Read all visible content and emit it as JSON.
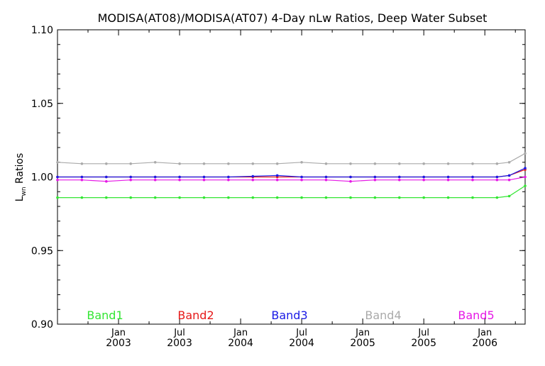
{
  "chart_data": {
    "type": "line",
    "title": "MODISA(AT08)/MODISA(AT07) 4-Day nLw Ratios, Deep Water Subset",
    "ylabel_main": "L",
    "ylabel_sub": "wn",
    "ylabel_rest": " Ratios",
    "ylim": [
      0.9,
      1.1
    ],
    "yticks": [
      {
        "value": 0.9,
        "label": "0.90"
      },
      {
        "value": 0.95,
        "label": "0.95"
      },
      {
        "value": 1.0,
        "label": "1.00"
      },
      {
        "value": 1.05,
        "label": "1.05"
      },
      {
        "value": 1.1,
        "label": "1.10"
      }
    ],
    "xlim": [
      2002.5,
      2006.33
    ],
    "xticks": [
      {
        "value": 2003.0,
        "line1": "Jan",
        "line2": "2003"
      },
      {
        "value": 2003.5,
        "line1": "Jul",
        "line2": "2003"
      },
      {
        "value": 2004.0,
        "line1": "Jan",
        "line2": "2004"
      },
      {
        "value": 2004.5,
        "line1": "Jul",
        "line2": "2004"
      },
      {
        "value": 2005.0,
        "line1": "Jan",
        "line2": "2005"
      },
      {
        "value": 2005.5,
        "line1": "Jul",
        "line2": "2005"
      },
      {
        "value": 2006.0,
        "line1": "Jan",
        "line2": "2006"
      }
    ],
    "grid": false,
    "legend_placement": "bottom",
    "series": [
      {
        "name": "Band1",
        "color": "#33e633",
        "points": [
          [
            2002.5,
            0.986
          ],
          [
            2002.7,
            0.986
          ],
          [
            2002.9,
            0.986
          ],
          [
            2003.1,
            0.986
          ],
          [
            2003.3,
            0.986
          ],
          [
            2003.5,
            0.986
          ],
          [
            2003.7,
            0.986
          ],
          [
            2003.9,
            0.986
          ],
          [
            2004.1,
            0.986
          ],
          [
            2004.3,
            0.986
          ],
          [
            2004.5,
            0.986
          ],
          [
            2004.7,
            0.986
          ],
          [
            2004.9,
            0.986
          ],
          [
            2005.1,
            0.986
          ],
          [
            2005.3,
            0.986
          ],
          [
            2005.5,
            0.986
          ],
          [
            2005.7,
            0.986
          ],
          [
            2005.9,
            0.986
          ],
          [
            2006.1,
            0.986
          ],
          [
            2006.2,
            0.987
          ],
          [
            2006.33,
            0.994
          ]
        ]
      },
      {
        "name": "Band2",
        "color": "#e61919",
        "points": [
          [
            2002.5,
            1.0
          ],
          [
            2002.7,
            1.0
          ],
          [
            2002.9,
            1.0
          ],
          [
            2003.1,
            1.0
          ],
          [
            2003.3,
            1.0
          ],
          [
            2003.5,
            1.0
          ],
          [
            2003.7,
            1.0
          ],
          [
            2003.9,
            1.0
          ],
          [
            2004.1,
            1.0
          ],
          [
            2004.3,
            1.0
          ],
          [
            2004.5,
            1.0
          ],
          [
            2004.7,
            1.0
          ],
          [
            2004.9,
            1.0
          ],
          [
            2005.1,
            1.0
          ],
          [
            2005.3,
            1.0
          ],
          [
            2005.5,
            1.0
          ],
          [
            2005.7,
            1.0
          ],
          [
            2005.9,
            1.0
          ],
          [
            2006.1,
            1.0
          ],
          [
            2006.2,
            1.001
          ],
          [
            2006.33,
            1.005
          ]
        ]
      },
      {
        "name": "Band3",
        "color": "#1a1ae6",
        "points": [
          [
            2002.5,
            1.0
          ],
          [
            2002.7,
            1.0
          ],
          [
            2002.9,
            1.0
          ],
          [
            2003.1,
            1.0
          ],
          [
            2003.3,
            1.0
          ],
          [
            2003.5,
            1.0
          ],
          [
            2003.7,
            1.0
          ],
          [
            2003.9,
            1.0
          ],
          [
            2004.1,
            1.0005
          ],
          [
            2004.3,
            1.001
          ],
          [
            2004.5,
            1.0
          ],
          [
            2004.7,
            1.0
          ],
          [
            2004.9,
            1.0
          ],
          [
            2005.1,
            1.0
          ],
          [
            2005.3,
            1.0
          ],
          [
            2005.5,
            1.0
          ],
          [
            2005.7,
            1.0
          ],
          [
            2005.9,
            1.0
          ],
          [
            2006.1,
            1.0
          ],
          [
            2006.2,
            1.001
          ],
          [
            2006.33,
            1.006
          ]
        ]
      },
      {
        "name": "Band4",
        "color": "#aaaaaa",
        "points": [
          [
            2002.5,
            1.01
          ],
          [
            2002.7,
            1.009
          ],
          [
            2002.9,
            1.009
          ],
          [
            2003.1,
            1.009
          ],
          [
            2003.3,
            1.01
          ],
          [
            2003.5,
            1.009
          ],
          [
            2003.7,
            1.009
          ],
          [
            2003.9,
            1.009
          ],
          [
            2004.1,
            1.009
          ],
          [
            2004.3,
            1.009
          ],
          [
            2004.5,
            1.01
          ],
          [
            2004.7,
            1.009
          ],
          [
            2004.9,
            1.009
          ],
          [
            2005.1,
            1.009
          ],
          [
            2005.3,
            1.009
          ],
          [
            2005.5,
            1.009
          ],
          [
            2005.7,
            1.009
          ],
          [
            2005.9,
            1.009
          ],
          [
            2006.1,
            1.009
          ],
          [
            2006.2,
            1.01
          ],
          [
            2006.33,
            1.016
          ]
        ]
      },
      {
        "name": "Band5",
        "color": "#e619e6",
        "points": [
          [
            2002.5,
            0.998
          ],
          [
            2002.7,
            0.998
          ],
          [
            2002.9,
            0.997
          ],
          [
            2003.1,
            0.998
          ],
          [
            2003.3,
            0.998
          ],
          [
            2003.5,
            0.998
          ],
          [
            2003.7,
            0.998
          ],
          [
            2003.9,
            0.998
          ],
          [
            2004.1,
            0.998
          ],
          [
            2004.3,
            0.998
          ],
          [
            2004.5,
            0.998
          ],
          [
            2004.7,
            0.998
          ],
          [
            2004.9,
            0.997
          ],
          [
            2005.1,
            0.998
          ],
          [
            2005.3,
            0.998
          ],
          [
            2005.5,
            0.998
          ],
          [
            2005.7,
            0.998
          ],
          [
            2005.9,
            0.998
          ],
          [
            2006.1,
            0.998
          ],
          [
            2006.2,
            0.998
          ],
          [
            2006.33,
            1.0
          ]
        ]
      }
    ]
  }
}
